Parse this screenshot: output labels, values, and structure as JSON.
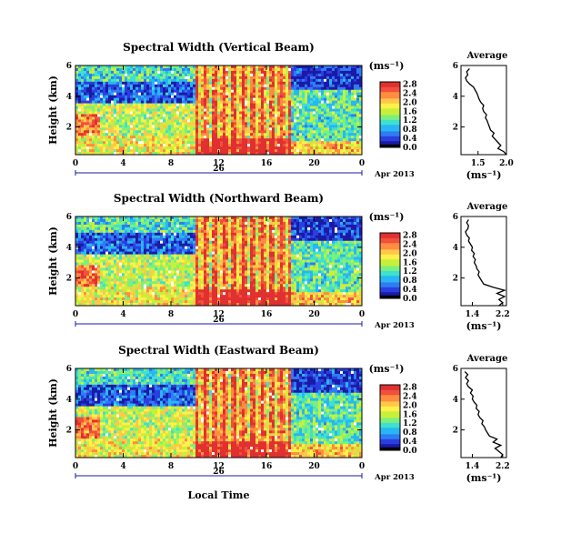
{
  "date_label": "Apr 2013",
  "day_label": "26",
  "x_axis_label": "Local Time",
  "y_axis_label": "Height (km)",
  "colorbar_unit": "(ms⁻¹)",
  "average_xlabel": "(ms⁻¹)",
  "average_title": "Average",
  "colors": {
    "colormap": [
      "#000000",
      "#1a1aa6",
      "#2b3fe0",
      "#2f7cf3",
      "#28b7f2",
      "#3fe0d0",
      "#7cf07c",
      "#c8f03a",
      "#fff04a",
      "#ffc84a",
      "#ff8c40",
      "#f0503c",
      "#e03030"
    ],
    "day_marker": "#1a1aa6"
  },
  "chart_data": [
    {
      "type": "heatmap",
      "title": "Spectral Width (Vertical Beam)",
      "x_ticks": [
        "0",
        "4",
        "8",
        "12",
        "16",
        "20",
        "0"
      ],
      "y_ticks": [
        "2",
        "4",
        "6"
      ],
      "xlim": [
        0,
        24
      ],
      "ylim": [
        0.2,
        6
      ],
      "colorbar_ticks": [
        "0.0",
        "0.4",
        "0.8",
        "1.2",
        "1.6",
        "2.0",
        "2.4",
        "2.8"
      ],
      "colorbar_range": [
        0,
        2.9
      ],
      "average": {
        "title": "Average",
        "x_ticks": [
          "1.5",
          "2.0"
        ],
        "xlim": [
          1.2,
          2.0
        ],
        "y_ticks": [
          "2",
          "4",
          "6"
        ],
        "height": [
          0.2,
          0.4,
          0.6,
          0.8,
          1.0,
          1.2,
          1.4,
          1.6,
          1.8,
          2.0,
          2.2,
          2.4,
          2.6,
          2.8,
          3.0,
          3.2,
          3.4,
          3.6,
          3.8,
          4.0,
          4.2,
          4.4,
          4.6,
          4.8,
          5.0,
          5.2,
          5.4,
          5.6,
          5.8
        ],
        "value": [
          2.0,
          1.95,
          1.85,
          1.9,
          1.85,
          1.8,
          1.75,
          1.78,
          1.72,
          1.7,
          1.68,
          1.66,
          1.63,
          1.65,
          1.6,
          1.58,
          1.6,
          1.55,
          1.52,
          1.5,
          1.48,
          1.45,
          1.42,
          1.35,
          1.3,
          1.28,
          1.32,
          1.3,
          1.35
        ]
      }
    },
    {
      "type": "heatmap",
      "title": "Spectral Width (Northward Beam)",
      "x_ticks": [
        "0",
        "4",
        "8",
        "12",
        "16",
        "20",
        "0"
      ],
      "y_ticks": [
        "2",
        "4",
        "6"
      ],
      "xlim": [
        0,
        24
      ],
      "ylim": [
        0.2,
        6
      ],
      "colorbar_ticks": [
        "0.0",
        "0.4",
        "0.8",
        "1.2",
        "1.6",
        "2.0",
        "2.4",
        "2.8"
      ],
      "colorbar_range": [
        0,
        2.9
      ],
      "average": {
        "title": "Average",
        "x_ticks": [
          "1.4",
          "2.2"
        ],
        "xlim": [
          1.1,
          2.3
        ],
        "y_ticks": [
          "2",
          "4",
          "6"
        ],
        "height": [
          0.2,
          0.4,
          0.6,
          0.8,
          1.0,
          1.2,
          1.4,
          1.6,
          1.8,
          2.0,
          2.2,
          2.4,
          2.6,
          2.8,
          3.0,
          3.2,
          3.4,
          3.6,
          3.8,
          4.0,
          4.2,
          4.4,
          4.6,
          4.8,
          5.0,
          5.2,
          5.4,
          5.6,
          5.8
        ],
        "value": [
          2.1,
          2.2,
          2.1,
          2.25,
          2.05,
          2.25,
          1.95,
          1.7,
          1.65,
          1.6,
          1.55,
          1.58,
          1.52,
          1.5,
          1.45,
          1.48,
          1.42,
          1.45,
          1.38,
          1.4,
          1.35,
          1.3,
          1.32,
          1.25,
          1.22,
          1.28,
          1.3,
          1.25,
          1.3
        ]
      }
    },
    {
      "type": "heatmap",
      "title": "Spectral Width (Eastward Beam)",
      "x_ticks": [
        "0",
        "4",
        "8",
        "12",
        "16",
        "20",
        "0"
      ],
      "y_ticks": [
        "2",
        "4",
        "6"
      ],
      "xlim": [
        0,
        24
      ],
      "ylim": [
        0.2,
        6
      ],
      "colorbar_ticks": [
        "0.0",
        "0.4",
        "0.8",
        "1.2",
        "1.6",
        "2.0",
        "2.4",
        "2.8"
      ],
      "colorbar_range": [
        0,
        2.9
      ],
      "average": {
        "title": "Average",
        "x_ticks": [
          "1.4",
          "2.2"
        ],
        "xlim": [
          1.1,
          2.3
        ],
        "y_ticks": [
          "2",
          "4",
          "6"
        ],
        "height": [
          0.2,
          0.4,
          0.6,
          0.8,
          1.0,
          1.2,
          1.4,
          1.6,
          1.8,
          2.0,
          2.2,
          2.4,
          2.6,
          2.8,
          3.0,
          3.2,
          3.4,
          3.6,
          3.8,
          4.0,
          4.2,
          4.4,
          4.6,
          4.8,
          5.0,
          5.2,
          5.4,
          5.6,
          5.8
        ],
        "value": [
          2.15,
          2.2,
          2.1,
          2.0,
          2.15,
          1.95,
          2.05,
          1.85,
          1.8,
          1.75,
          1.72,
          1.65,
          1.68,
          1.6,
          1.55,
          1.58,
          1.5,
          1.52,
          1.45,
          1.4,
          1.42,
          1.35,
          1.4,
          1.3,
          1.25,
          1.3,
          1.22,
          1.28,
          1.2
        ]
      }
    }
  ]
}
